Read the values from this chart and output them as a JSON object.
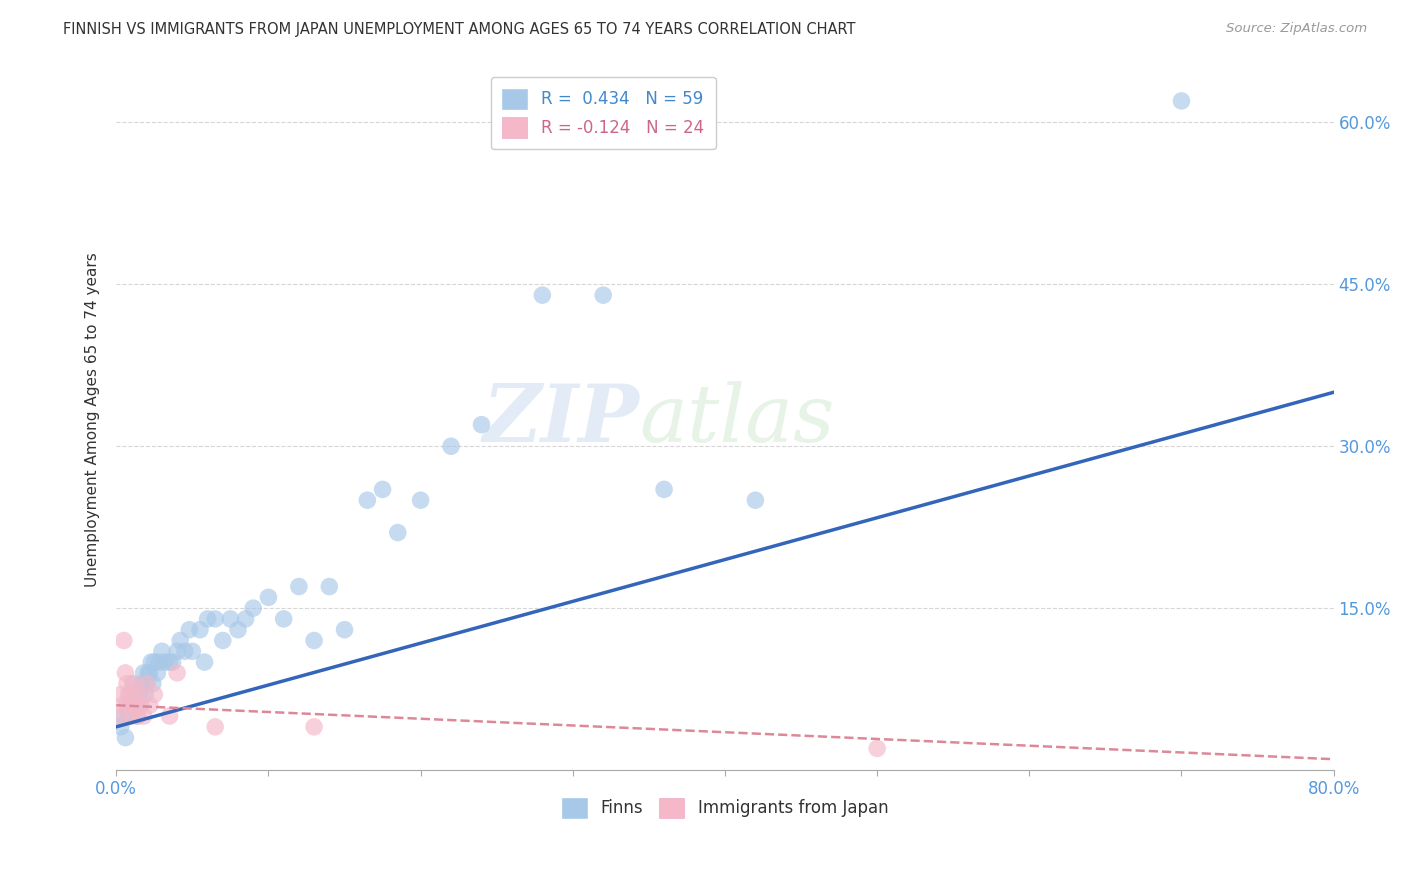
{
  "title": "FINNISH VS IMMIGRANTS FROM JAPAN UNEMPLOYMENT AMONG AGES 65 TO 74 YEARS CORRELATION CHART",
  "source": "Source: ZipAtlas.com",
  "ylabel": "Unemployment Among Ages 65 to 74 years",
  "watermark_zip": "ZIP",
  "watermark_atlas": "atlas",
  "xlim": [
    0.0,
    0.8
  ],
  "ylim": [
    0.0,
    0.65
  ],
  "xticks": [
    0.0,
    0.1,
    0.2,
    0.3,
    0.4,
    0.5,
    0.6,
    0.7,
    0.8
  ],
  "yticks": [
    0.0,
    0.15,
    0.3,
    0.45,
    0.6
  ],
  "xticklabels": [
    "0.0%",
    "",
    "",
    "",
    "",
    "",
    "",
    "",
    "80.0%"
  ],
  "yticklabels_left": [
    "",
    "",
    "",
    "",
    ""
  ],
  "yticklabels_right": [
    "",
    "15.0%",
    "30.0%",
    "45.0%",
    "60.0%"
  ],
  "finns_R": 0.434,
  "finns_N": 59,
  "japan_R": -0.124,
  "japan_N": 24,
  "finns_color": "#A8C8E8",
  "japan_color": "#F4B8C8",
  "finns_line_color": "#3366BB",
  "japan_line_color": "#DD8899",
  "background_color": "#FFFFFF",
  "grid_color": "#CCCCCC",
  "title_color": "#333333",
  "axis_label_color": "#333333",
  "tick_label_color": "#5599DD",
  "legend_finns_color": "#4488CC",
  "legend_japan_color": "#CC6688",
  "finns_x": [
    0.003,
    0.005,
    0.006,
    0.007,
    0.008,
    0.009,
    0.01,
    0.011,
    0.012,
    0.013,
    0.014,
    0.015,
    0.016,
    0.017,
    0.018,
    0.019,
    0.02,
    0.021,
    0.022,
    0.023,
    0.024,
    0.025,
    0.027,
    0.028,
    0.03,
    0.032,
    0.035,
    0.037,
    0.04,
    0.042,
    0.045,
    0.048,
    0.05,
    0.055,
    0.058,
    0.06,
    0.065,
    0.07,
    0.075,
    0.08,
    0.085,
    0.09,
    0.1,
    0.11,
    0.12,
    0.13,
    0.14,
    0.15,
    0.165,
    0.175,
    0.185,
    0.2,
    0.22,
    0.24,
    0.28,
    0.32,
    0.36,
    0.42,
    0.7
  ],
  "finns_y": [
    0.04,
    0.05,
    0.03,
    0.06,
    0.05,
    0.07,
    0.06,
    0.08,
    0.07,
    0.06,
    0.05,
    0.07,
    0.06,
    0.08,
    0.09,
    0.07,
    0.08,
    0.09,
    0.09,
    0.1,
    0.08,
    0.1,
    0.09,
    0.1,
    0.11,
    0.1,
    0.1,
    0.1,
    0.11,
    0.12,
    0.11,
    0.13,
    0.11,
    0.13,
    0.1,
    0.14,
    0.14,
    0.12,
    0.14,
    0.13,
    0.14,
    0.15,
    0.16,
    0.14,
    0.17,
    0.12,
    0.17,
    0.13,
    0.25,
    0.26,
    0.22,
    0.25,
    0.3,
    0.32,
    0.44,
    0.44,
    0.26,
    0.25,
    0.62
  ],
  "japan_x": [
    0.002,
    0.003,
    0.004,
    0.005,
    0.006,
    0.007,
    0.008,
    0.009,
    0.01,
    0.011,
    0.012,
    0.013,
    0.014,
    0.015,
    0.016,
    0.018,
    0.02,
    0.022,
    0.025,
    0.035,
    0.04,
    0.065,
    0.13,
    0.5
  ],
  "japan_y": [
    0.05,
    0.07,
    0.06,
    0.12,
    0.09,
    0.08,
    0.07,
    0.06,
    0.05,
    0.08,
    0.07,
    0.06,
    0.05,
    0.07,
    0.06,
    0.05,
    0.08,
    0.06,
    0.07,
    0.05,
    0.09,
    0.04,
    0.04,
    0.02
  ],
  "finns_line_x": [
    0.0,
    0.8
  ],
  "finns_line_y": [
    0.04,
    0.35
  ],
  "japan_line_x": [
    0.0,
    0.8
  ],
  "japan_line_y": [
    0.06,
    0.01
  ]
}
